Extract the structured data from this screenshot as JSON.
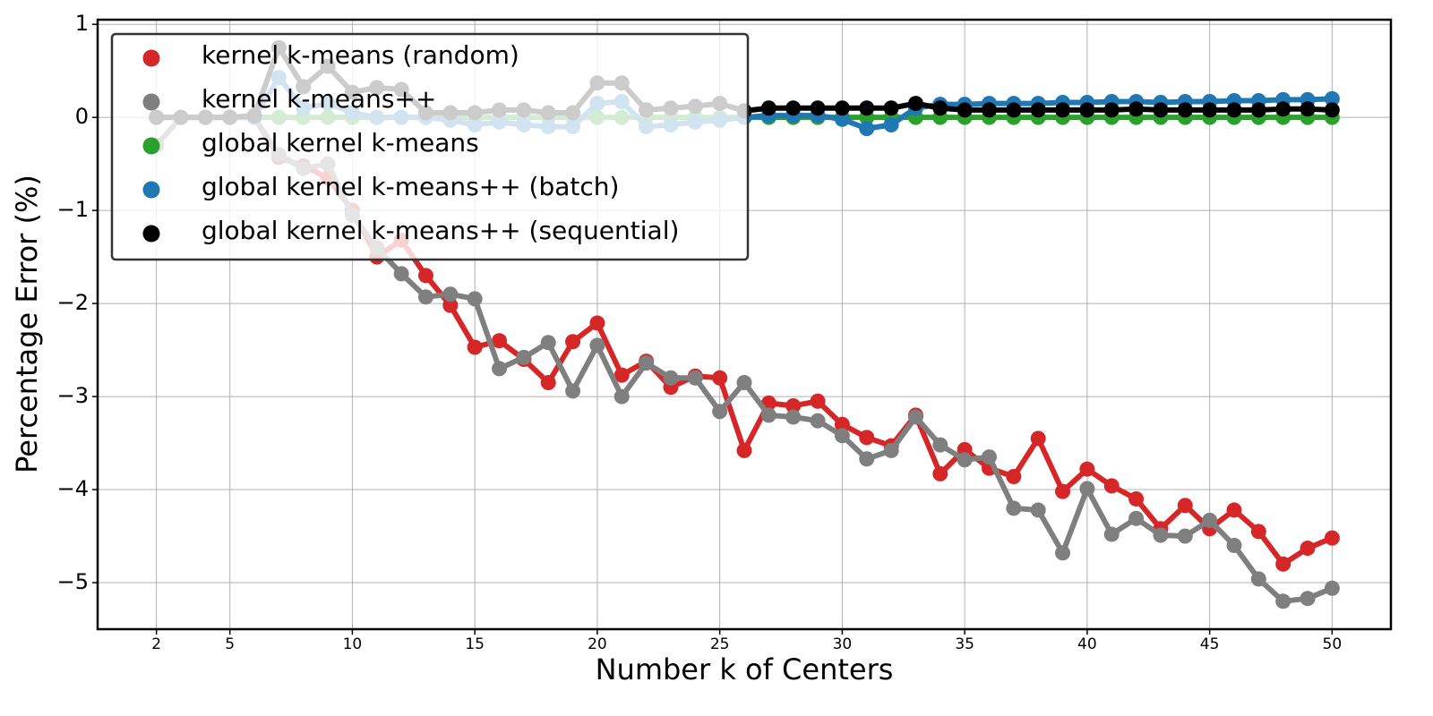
{
  "chart_data": {
    "type": "line",
    "xlabel": "Number k of Centers",
    "ylabel": "Percentage Error (%)",
    "x": [
      2,
      3,
      4,
      5,
      6,
      7,
      8,
      9,
      10,
      11,
      12,
      13,
      14,
      15,
      16,
      17,
      18,
      19,
      20,
      21,
      22,
      23,
      24,
      25,
      26,
      27,
      28,
      29,
      30,
      31,
      32,
      33,
      34,
      35,
      36,
      37,
      38,
      39,
      40,
      41,
      42,
      43,
      44,
      45,
      46,
      47,
      48,
      49,
      50
    ],
    "series": [
      {
        "name": "kernel k-means (random)",
        "color": "#d62728",
        "values": [
          0,
          0,
          0,
          0,
          0,
          -0.43,
          -0.52,
          -0.65,
          -1.0,
          -1.5,
          -1.32,
          -1.7,
          -2.02,
          -2.47,
          -2.4,
          -2.6,
          -2.85,
          -2.41,
          -2.21,
          -2.77,
          -2.62,
          -2.9,
          -2.78,
          -2.8,
          -3.58,
          -3.07,
          -3.1,
          -3.05,
          -3.3,
          -3.44,
          -3.53,
          -3.2,
          -3.83,
          -3.57,
          -3.77,
          -3.86,
          -3.45,
          -4.02,
          -3.78,
          -3.96,
          -4.1,
          -4.42,
          -4.17,
          -4.42,
          -4.22,
          -4.45,
          -4.8,
          -4.63,
          -4.52
        ]
      },
      {
        "name": "kernel k-means++",
        "color": "#7f7f7f",
        "values": [
          -0.3,
          0,
          0,
          0,
          0,
          -0.4,
          -0.55,
          -0.5,
          -1.05,
          -1.4,
          -1.68,
          -1.93,
          -1.9,
          -1.95,
          -2.7,
          -2.58,
          -2.42,
          -2.94,
          -2.45,
          -3.0,
          -2.64,
          -2.8,
          -2.8,
          -3.16,
          -2.85,
          -3.2,
          -3.22,
          -3.26,
          -3.42,
          -3.67,
          -3.58,
          -3.22,
          -3.52,
          -3.68,
          -3.65,
          -4.2,
          -4.22,
          -4.68,
          -3.99,
          -4.48,
          -4.31,
          -4.49,
          -4.5,
          -4.33,
          -4.6,
          -4.96,
          -5.2,
          -5.17,
          -5.06
        ]
      },
      {
        "name": "global kernel k-means",
        "color": "#2ca02c",
        "values": [
          0,
          0,
          0,
          0,
          0,
          0,
          0,
          0,
          0,
          0,
          0,
          0,
          0,
          0,
          0,
          0,
          0,
          0,
          0,
          0,
          0,
          0,
          0,
          0,
          0,
          0,
          0,
          0,
          0,
          0,
          0,
          0,
          0,
          0,
          0,
          0,
          0,
          0,
          0,
          0,
          0,
          0,
          0,
          0,
          0,
          0,
          0,
          0,
          0
        ]
      },
      {
        "name": "global kernel k-means++ (batch)",
        "color": "#1f77b4",
        "values": [
          0,
          0,
          0,
          0,
          0,
          0.43,
          0.1,
          0.15,
          0.05,
          0,
          0,
          0,
          -0.03,
          -0.08,
          -0.05,
          -0.08,
          -0.1,
          -0.1,
          0.15,
          0.17,
          -0.1,
          -0.08,
          -0.05,
          -0.03,
          0,
          0.02,
          0.02,
          0.02,
          -0.02,
          -0.12,
          -0.08,
          0.1,
          0.14,
          0.14,
          0.15,
          0.15,
          0.15,
          0.16,
          0.16,
          0.17,
          0.17,
          0.16,
          0.17,
          0.17,
          0.18,
          0.18,
          0.19,
          0.19,
          0.2
        ]
      },
      {
        "name": "global kernel k-means++ (sequential)",
        "color": "#000000",
        "values": [
          0,
          0,
          0,
          0,
          0.02,
          0.75,
          0.33,
          0.55,
          0.27,
          0.32,
          0.3,
          0.05,
          0.05,
          0.05,
          0.08,
          0.08,
          0.05,
          0.05,
          0.37,
          0.37,
          0.08,
          0.1,
          0.12,
          0.15,
          0.07,
          0.1,
          0.1,
          0.1,
          0.1,
          0.1,
          0.1,
          0.15,
          0.1,
          0.08,
          0.08,
          0.08,
          0.08,
          0.08,
          0.08,
          0.08,
          0.09,
          0.08,
          0.08,
          0.08,
          0.08,
          0.08,
          0.09,
          0.09,
          0.08
        ]
      }
    ],
    "xlim": [
      -0.4,
      52.4
    ],
    "xticks": [
      2,
      5,
      10,
      15,
      20,
      25,
      30,
      35,
      40,
      45,
      50
    ],
    "ylim": [
      -5.5,
      1.05
    ],
    "yticks": [
      {
        "value": -5,
        "label": "−5"
      },
      {
        "value": -4,
        "label": "−4"
      },
      {
        "value": -3,
        "label": "−3"
      },
      {
        "value": -2,
        "label": "−2"
      },
      {
        "value": -1,
        "label": "−1"
      },
      0,
      1
    ],
    "grid": true,
    "legend": "upper left"
  }
}
